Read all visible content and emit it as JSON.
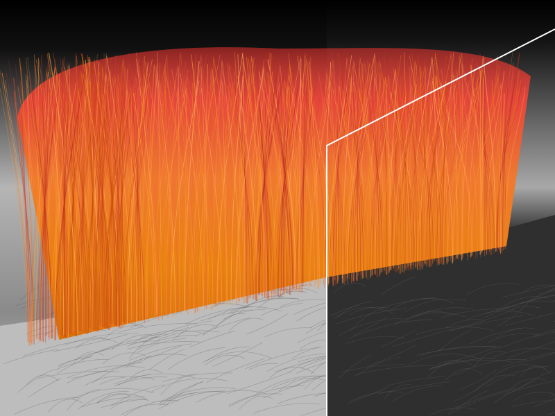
{
  "scene": {
    "subject": "hair",
    "colors": {
      "hair_root": "#e8780a",
      "hair_mid": "#f08a20",
      "hair_tip": "#e03a30",
      "background_top": "#000000",
      "background_bottom": "#9a9a9a",
      "floor_left": "#c8c8c8",
      "floor_right": "#2e2e2e",
      "divider": "#ffffff"
    }
  }
}
